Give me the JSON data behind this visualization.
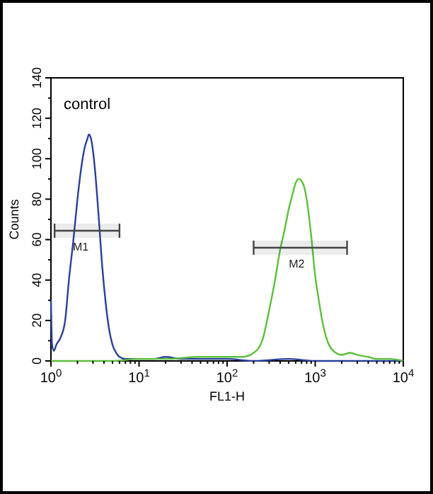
{
  "chart_data": {
    "type": "line",
    "xlabel": "FL1-H",
    "ylabel": "Counts",
    "log": "x",
    "grid": false,
    "marker": "none",
    "line_style": "solid",
    "xlim": [
      1,
      10000
    ],
    "xticks": [
      {
        "value": 1,
        "label": "10$^{0}$"
      },
      {
        "value": 2,
        "label": null
      },
      {
        "value": 3,
        "label": null
      },
      {
        "value": 4,
        "label": null
      },
      {
        "value": 5,
        "label": null
      },
      {
        "value": 6,
        "label": null
      },
      {
        "value": 7,
        "label": null
      },
      {
        "value": 8,
        "label": null
      },
      {
        "value": 9,
        "label": null
      },
      {
        "value": 10,
        "label": "10$^{1}$"
      },
      {
        "value": 20,
        "label": null
      },
      {
        "value": 30,
        "label": null
      },
      {
        "value": 40,
        "label": null
      },
      {
        "value": 50,
        "label": null
      },
      {
        "value": 60,
        "label": null
      },
      {
        "value": 70,
        "label": null
      },
      {
        "value": 80,
        "label": null
      },
      {
        "value": 90,
        "label": null
      },
      {
        "value": 100,
        "label": "10$^{2}$"
      },
      {
        "value": 200,
        "label": null
      },
      {
        "value": 300,
        "label": null
      },
      {
        "value": 400,
        "label": null
      },
      {
        "value": 500,
        "label": null
      },
      {
        "value": 600,
        "label": null
      },
      {
        "value": 700,
        "label": null
      },
      {
        "value": 800,
        "label": null
      },
      {
        "value": 900,
        "label": null
      },
      {
        "value": 1000,
        "label": "10$^{3}$"
      },
      {
        "value": 2000,
        "label": null
      },
      {
        "value": 3000,
        "label": null
      },
      {
        "value": 4000,
        "label": null
      },
      {
        "value": 5000,
        "label": null
      },
      {
        "value": 6000,
        "label": null
      },
      {
        "value": 7000,
        "label": null
      },
      {
        "value": 8000,
        "label": null
      },
      {
        "value": 9000,
        "label": null
      },
      {
        "value": 10000,
        "label": "10$^{4}$"
      }
    ],
    "ylim": [
      0,
      140
    ],
    "yticks": [
      0,
      {
        "value": 10,
        "label": null
      },
      20,
      {
        "value": 30,
        "label": null
      },
      40,
      {
        "value": 50,
        "label": null
      },
      60,
      {
        "value": 70,
        "label": null
      },
      80,
      {
        "value": 90,
        "label": null
      },
      100,
      {
        "value": 110,
        "label": null
      },
      120,
      {
        "value": 130,
        "label": null
      },
      140
    ],
    "series": [
      {
        "color": "#2a3f9a",
        "x": [
          1,
          1.03,
          1.08,
          1.15,
          1.3,
          1.45,
          1.6,
          1.8,
          2,
          2.2,
          2.4,
          2.6,
          2.7,
          2.85,
          3,
          3.2,
          3.5,
          3.8,
          4.2,
          4.6,
          5,
          5.5,
          6,
          7,
          8,
          10,
          15,
          20,
          30,
          50,
          100,
          200,
          500,
          1000,
          3000,
          10000
        ],
        "values": [
          30,
          8,
          5,
          8,
          12,
          20,
          40,
          60,
          80,
          95,
          105,
          110,
          112,
          110,
          104,
          92,
          70,
          48,
          28,
          15,
          8,
          4,
          2,
          1,
          1,
          1,
          1,
          2,
          1,
          1,
          1,
          0,
          1,
          0,
          0,
          0
        ]
      },
      {
        "color": "#5cbf3a",
        "x": [
          1,
          5,
          10,
          20,
          50,
          100,
          150,
          200,
          250,
          300,
          350,
          400,
          450,
          500,
          550,
          600,
          650,
          700,
          750,
          800,
          900,
          1000,
          1100,
          1200,
          1400,
          1600,
          2000,
          2500,
          3000,
          4000,
          5000,
          7000,
          10000
        ],
        "values": [
          0,
          0,
          1,
          1,
          2,
          2,
          2,
          4,
          10,
          25,
          40,
          55,
          65,
          75,
          82,
          88,
          90,
          89,
          86,
          80,
          62,
          42,
          30,
          20,
          9,
          5,
          3,
          4,
          3,
          2,
          1,
          1,
          0
        ]
      }
    ],
    "bands": [
      {
        "axis": "x",
        "from": 1.1,
        "to": 6,
        "label": "M1",
        "color": "#444444"
      },
      {
        "axis": "x",
        "from": 200,
        "to": 2300,
        "label": "M2",
        "color": "#444444"
      }
    ],
    "annotations": [
      "control"
    ]
  }
}
